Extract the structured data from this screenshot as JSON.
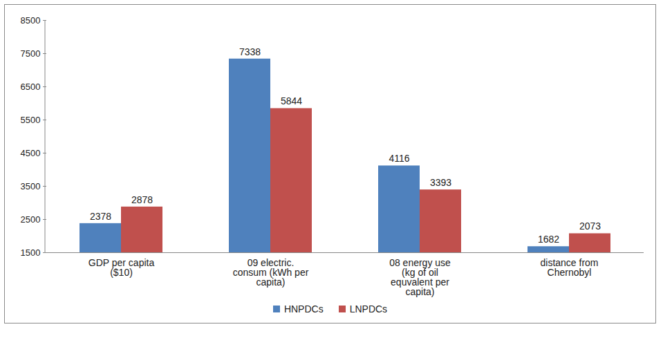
{
  "chart_data": {
    "type": "bar",
    "categories": [
      "GDP per capita ($10)",
      "09 electric. consum (kWh per capita)",
      "08 energy use (kg of oil equvalent per capita)",
      "distance from Chernobyl"
    ],
    "series": [
      {
        "name": "HNPDCs",
        "color": "#4f81bd",
        "values": [
          2378,
          7338,
          4116,
          1682
        ]
      },
      {
        "name": "LNPDCs",
        "color": "#c0504d",
        "values": [
          2878,
          5844,
          3393,
          2073
        ]
      }
    ],
    "ylim": [
      1500,
      8500
    ],
    "yticks": [
      1500,
      2500,
      3500,
      4500,
      5500,
      6500,
      7500,
      8500
    ],
    "grid": false,
    "data_labels": true,
    "legend": "bottom"
  }
}
